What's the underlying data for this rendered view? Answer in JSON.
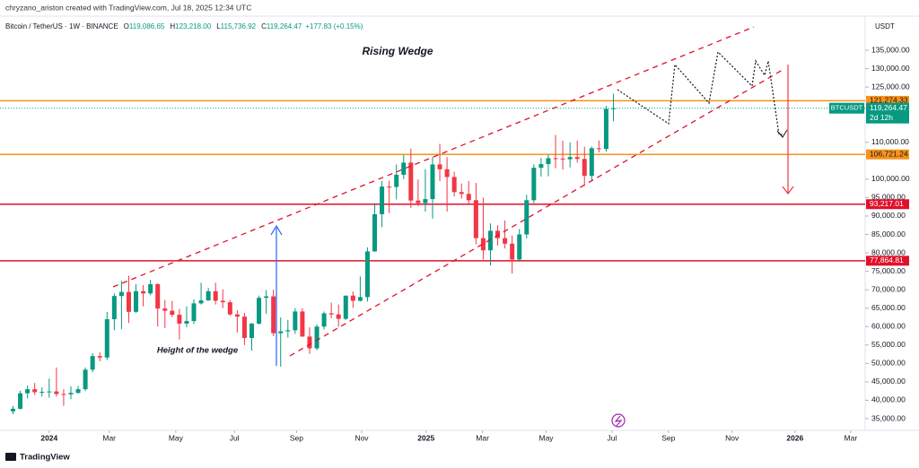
{
  "chart_data": {
    "type": "candlestick",
    "credit": "chryzano_ariston created with TradingView.com, Jul 18, 2025 12:34 UTC",
    "header": {
      "symbol": "Bitcoin / TetherUS · 1W · BINANCE",
      "fields": [
        {
          "name": "O",
          "value": 119086.65,
          "label": "119,086.65"
        },
        {
          "name": "H",
          "value": 123218.0,
          "label": "123,218.00"
        },
        {
          "name": "L",
          "value": 115736.92,
          "label": "115,736.92"
        },
        {
          "name": "C",
          "value": 119264.47,
          "label": "119,264.47"
        }
      ],
      "change": "+177.83 (+0.15%)"
    },
    "currency": "USDT",
    "brand": "TradingView",
    "annotations": [
      "Rising Wedge",
      "Height of the wedge"
    ],
    "up_color": "#089981",
    "down_color": "#f23645",
    "x": [
      -5,
      -4,
      -3,
      -2,
      -1,
      0,
      1,
      2,
      3,
      4,
      5,
      6,
      7,
      8,
      9,
      10,
      11,
      12,
      13,
      14,
      15,
      16,
      17,
      18,
      19,
      20,
      21,
      22,
      23,
      24,
      25,
      26,
      27,
      28,
      29,
      30,
      31,
      32,
      33,
      34,
      35,
      36,
      37,
      38,
      39,
      40,
      41,
      42,
      43,
      44,
      45,
      46,
      47,
      48,
      49,
      50,
      51,
      52,
      53,
      54,
      55,
      56,
      57,
      58,
      59,
      60,
      61,
      62,
      63,
      64,
      65,
      66,
      67,
      68,
      69,
      70,
      71,
      72,
      73,
      74,
      75,
      76,
      77,
      78
    ],
    "open": [
      37000,
      37700,
      41900,
      43000,
      42200,
      42300,
      42400,
      41700,
      41600,
      42000,
      43000,
      48300,
      52000,
      51600,
      62000,
      68300,
      69400,
      64000,
      69600,
      69000,
      71500,
      64900,
      64300,
      63200,
      60800,
      61500,
      66300,
      67100,
      69600,
      67000,
      66600,
      63300,
      62700,
      56900,
      60800,
      67800,
      68200,
      58200,
      58700,
      59000,
      64100,
      57300,
      54100,
      60000,
      63600,
      63300,
      62100,
      68400,
      67000,
      68000,
      80400,
      90500,
      98000,
      97900,
      101200,
      104500,
      94200,
      93500,
      94600,
      104000,
      102700,
      100600,
      96500,
      96000,
      94300,
      84000,
      80700,
      86000,
      84000,
      82500,
      78200,
      85000,
      94300,
      103100,
      104100,
      105700,
      105600,
      105400,
      106000,
      105500,
      100900,
      108400,
      108200,
      119086.65
    ],
    "high": [
      38500,
      42600,
      44000,
      44700,
      43500,
      45900,
      48900,
      43000,
      43800,
      43900,
      48900,
      52800,
      53000,
      64000,
      69000,
      72400,
      73800,
      71500,
      71300,
      72700,
      71800,
      67200,
      67000,
      64800,
      65500,
      67400,
      71900,
      70500,
      71900,
      70100,
      67200,
      64500,
      63700,
      61000,
      68400,
      69900,
      70000,
      62500,
      61800,
      65000,
      65000,
      59800,
      60600,
      64100,
      66500,
      66000,
      68400,
      69500,
      73600,
      81500,
      93500,
      99500,
      99600,
      104000,
      106500,
      108300,
      99900,
      102700,
      106000,
      109600,
      106000,
      102000,
      98800,
      99500,
      99000,
      95000,
      88000,
      87500,
      88800,
      84700,
      86500,
      95800,
      104000,
      105800,
      106700,
      112000,
      110400,
      110000,
      110500,
      108800,
      108900,
      110500,
      119900,
      123218
    ],
    "low": [
      36200,
      37500,
      40500,
      41400,
      41000,
      40700,
      41000,
      38500,
      40300,
      41800,
      42500,
      47600,
      50600,
      50900,
      59000,
      59300,
      61000,
      63700,
      65500,
      68500,
      60000,
      59600,
      62600,
      56500,
      59800,
      60700,
      66000,
      67000,
      66000,
      65000,
      63000,
      58400,
      55000,
      53500,
      60600,
      63500,
      57400,
      49100,
      57000,
      58000,
      57200,
      52600,
      53600,
      59200,
      62300,
      59900,
      61800,
      65100,
      66800,
      66800,
      80300,
      87000,
      90800,
      94500,
      100000,
      92200,
      92700,
      91200,
      89300,
      99500,
      91200,
      95300,
      94700,
      93300,
      82300,
      78200,
      76600,
      82000,
      81200,
      74400,
      77600,
      83900,
      93500,
      100700,
      100800,
      103000,
      102600,
      103200,
      104500,
      98200,
      99600,
      107300,
      107500,
      115736.92
    ],
    "close": [
      37700,
      41900,
      43000,
      42200,
      42300,
      42400,
      41700,
      41600,
      42000,
      43000,
      48300,
      52000,
      51600,
      62000,
      68300,
      69400,
      64000,
      69600,
      69000,
      71500,
      64900,
      64300,
      63200,
      60800,
      61500,
      66300,
      67100,
      69600,
      67000,
      66600,
      63300,
      62700,
      56900,
      60800,
      67800,
      68200,
      58200,
      58700,
      59000,
      64100,
      57300,
      54100,
      60000,
      63600,
      63300,
      62100,
      68400,
      67000,
      68000,
      80400,
      90500,
      98000,
      97900,
      101200,
      104500,
      94200,
      93500,
      94600,
      104000,
      102700,
      100600,
      96500,
      96000,
      94300,
      84000,
      80700,
      86000,
      84000,
      82500,
      78200,
      85000,
      94300,
      103100,
      104100,
      105700,
      105600,
      105400,
      106000,
      105500,
      100900,
      108400,
      108200,
      119100,
      119264.47
    ],
    "xlim": [
      -6.8,
      112.8
    ],
    "xticks": [
      {
        "value": 0,
        "label": "2024"
      },
      {
        "value": 8.3,
        "label": "Mar"
      },
      {
        "value": 17.5,
        "label": "May"
      },
      {
        "value": 25.6,
        "label": "Jul"
      },
      {
        "value": 34.2,
        "label": "Sep"
      },
      {
        "value": 43.2,
        "label": "Nov"
      },
      {
        "value": 52.1,
        "label": "2025"
      },
      {
        "value": 59.9,
        "label": "Mar"
      },
      {
        "value": 68.7,
        "label": "May"
      },
      {
        "value": 77.8,
        "label": "Jul"
      },
      {
        "value": 85.6,
        "label": "Sep"
      },
      {
        "value": 94.4,
        "label": "Nov"
      },
      {
        "value": 103.1,
        "label": "2026"
      },
      {
        "value": 110.8,
        "label": "Mar"
      }
    ],
    "ylim": [
      31840,
      144250
    ],
    "yticks": [
      {
        "value": 135000,
        "label": "135,000.00"
      },
      {
        "value": 130000,
        "label": "130,000.00"
      },
      {
        "value": 125000,
        "label": "125,000.00"
      },
      {
        "value": 110000,
        "label": "110,000.00"
      },
      {
        "value": 100000,
        "label": "100,000.00"
      },
      {
        "value": 95000,
        "label": "95,000.00"
      },
      {
        "value": 90000,
        "label": "90,000.00"
      },
      {
        "value": 85000,
        "label": "85,000.00"
      },
      {
        "value": 80000,
        "label": "80,000.00"
      },
      {
        "value": 75000,
        "label": "75,000.00"
      },
      {
        "value": 70000,
        "label": "70,000.00"
      },
      {
        "value": 65000,
        "label": "65,000.00"
      },
      {
        "value": 60000,
        "label": "60,000.00"
      },
      {
        "value": 55000,
        "label": "55,000.00"
      },
      {
        "value": 50000,
        "label": "50,000.00"
      },
      {
        "value": 45000,
        "label": "45,000.00"
      },
      {
        "value": 40000,
        "label": "40,000.00"
      },
      {
        "value": 35000,
        "label": "35,000.00"
      }
    ],
    "levels": [
      {
        "value": 121274.33,
        "label": "121,274.33",
        "color": "#f7931a"
      },
      {
        "value": 106721.24,
        "label": "106,721.24",
        "color": "#f7931a"
      },
      {
        "value": 93217.01,
        "label": "93,217.01",
        "color": "#e0112b"
      },
      {
        "value": 77864.81,
        "label": "77,864.81",
        "color": "#e0112b"
      }
    ],
    "last_price": {
      "value": 119264.47,
      "label": "119,264.47",
      "symbol": "BTCUSDT",
      "countdown": "2d 12h",
      "color": "#089981"
    }
  }
}
